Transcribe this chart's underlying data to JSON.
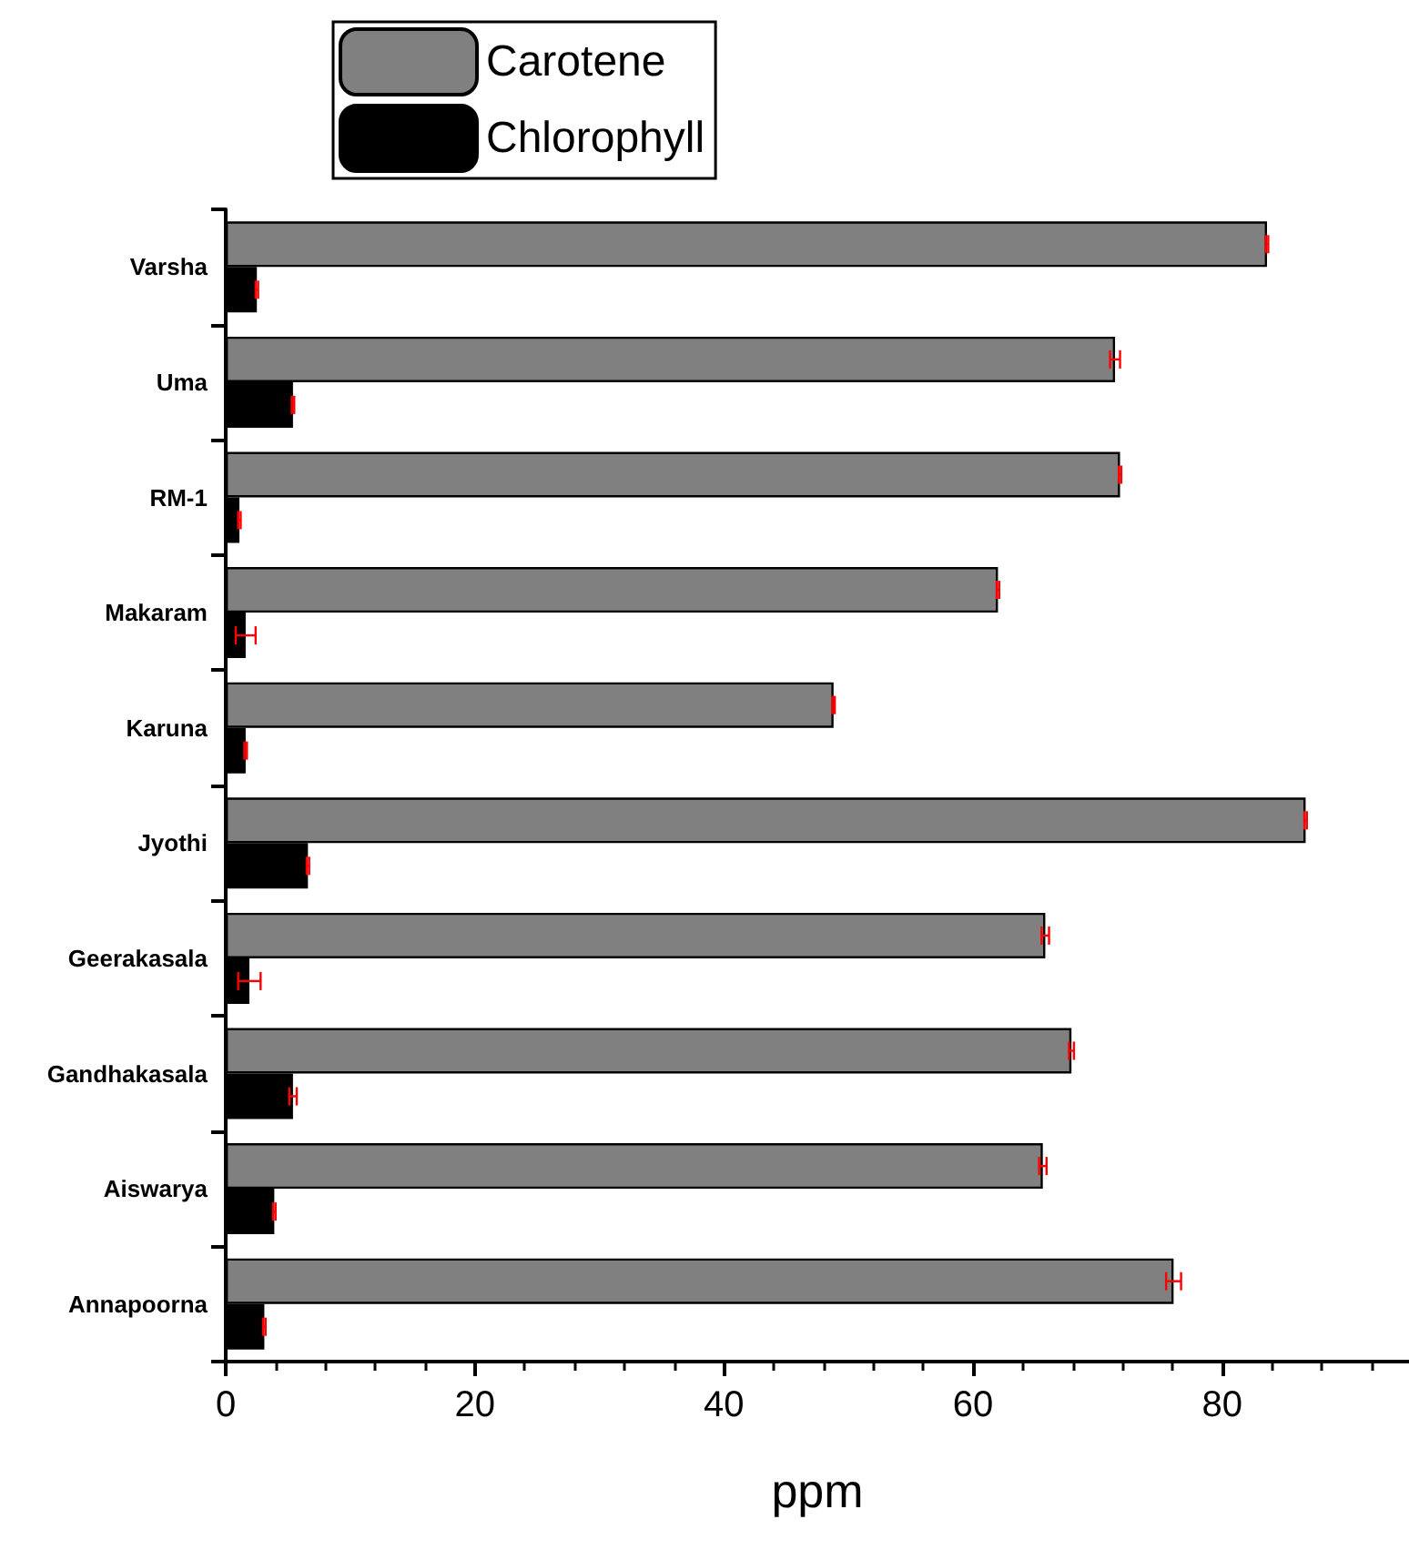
{
  "chart_data": {
    "type": "bar",
    "orientation": "horizontal",
    "xlabel": "ppm",
    "categories": [
      "Varsha",
      "Uma",
      "RM-1",
      "Makaram",
      "Karuna",
      "Jyothi",
      "Geerakasala",
      "Gandhakasala",
      "Aiswarya",
      "Annapoorna"
    ],
    "series": [
      {
        "name": "Carotene",
        "color": "#808080",
        "values": [
          83.6,
          71.4,
          71.8,
          62.0,
          48.8,
          86.7,
          65.8,
          67.9,
          65.6,
          76.1
        ],
        "errors": [
          0.1,
          0.4,
          0.1,
          0.1,
          0.1,
          0.1,
          0.3,
          0.2,
          0.3,
          0.6
        ]
      },
      {
        "name": "Chlorophyll",
        "color": "#000000",
        "values": [
          2.5,
          5.4,
          1.1,
          1.6,
          1.6,
          6.6,
          1.9,
          5.4,
          3.9,
          3.1
        ],
        "errors": [
          0.1,
          0.1,
          0.1,
          0.8,
          0.1,
          0.1,
          0.9,
          0.3,
          0.1,
          0.1
        ]
      }
    ],
    "xlim": [
      0,
      95
    ],
    "xticks": [
      0,
      20,
      40,
      60,
      80
    ],
    "grid": false,
    "legend": "top left"
  }
}
